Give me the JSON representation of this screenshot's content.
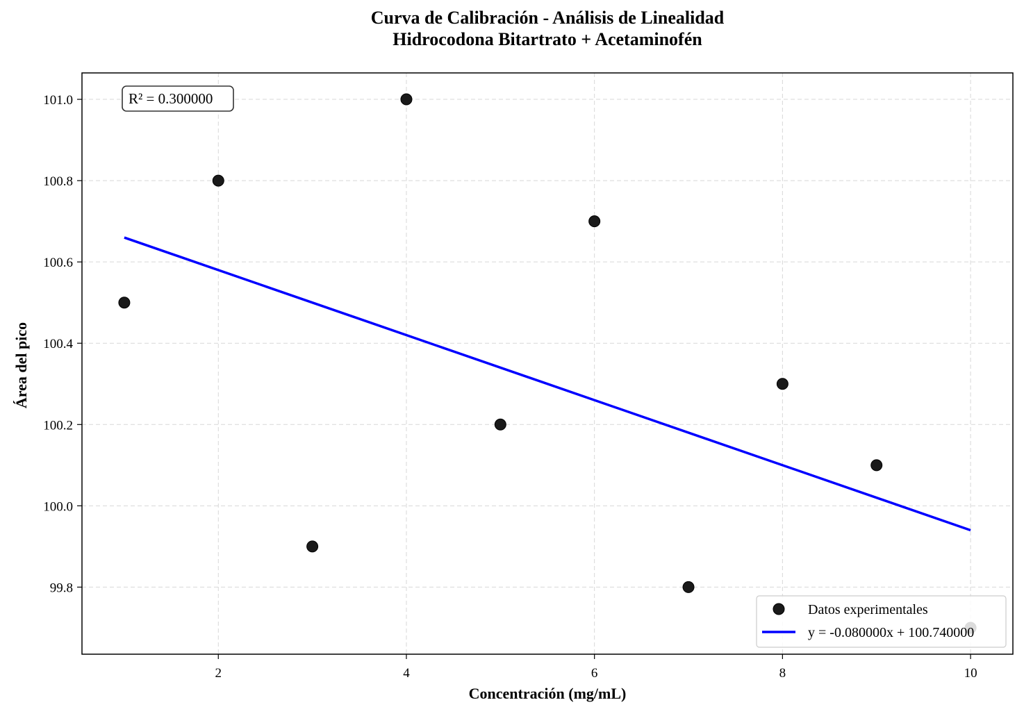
{
  "chart_data": {
    "type": "scatter",
    "title": "Curva de Calibración - Análisis de Linealidad",
    "subtitle": "Hidrocodona Bitartrato + Acetaminofén",
    "xlabel": "Concentración (mg/mL)",
    "ylabel": "Área del pico",
    "xlim": [
      0.55,
      10.45
    ],
    "ylim": [
      99.635,
      101.065
    ],
    "xticks": [
      2,
      4,
      6,
      8,
      10
    ],
    "yticks": [
      99.8,
      100.0,
      100.2,
      100.4,
      100.6,
      100.8,
      101.0
    ],
    "xtick_labels": [
      "2",
      "4",
      "6",
      "8",
      "10"
    ],
    "ytick_labels": [
      "99.8",
      "100.0",
      "100.2",
      "100.4",
      "100.6",
      "100.8",
      "101.0"
    ],
    "grid": true,
    "legend_position": "bottom-right",
    "annotation": "R² = 0.300000",
    "series": [
      {
        "name": "Datos experimentales",
        "kind": "scatter",
        "color": "#1a1a1a",
        "x": [
          1,
          2,
          3,
          4,
          5,
          6,
          7,
          8,
          9,
          10
        ],
        "y": [
          100.5,
          100.8,
          99.9,
          101.0,
          100.2,
          100.7,
          99.8,
          100.3,
          100.1,
          99.7
        ]
      },
      {
        "name": "y = -0.080000x + 100.740000",
        "kind": "line",
        "color": "#0000ff",
        "x": [
          1,
          10
        ],
        "y": [
          100.66,
          99.94
        ]
      }
    ]
  }
}
